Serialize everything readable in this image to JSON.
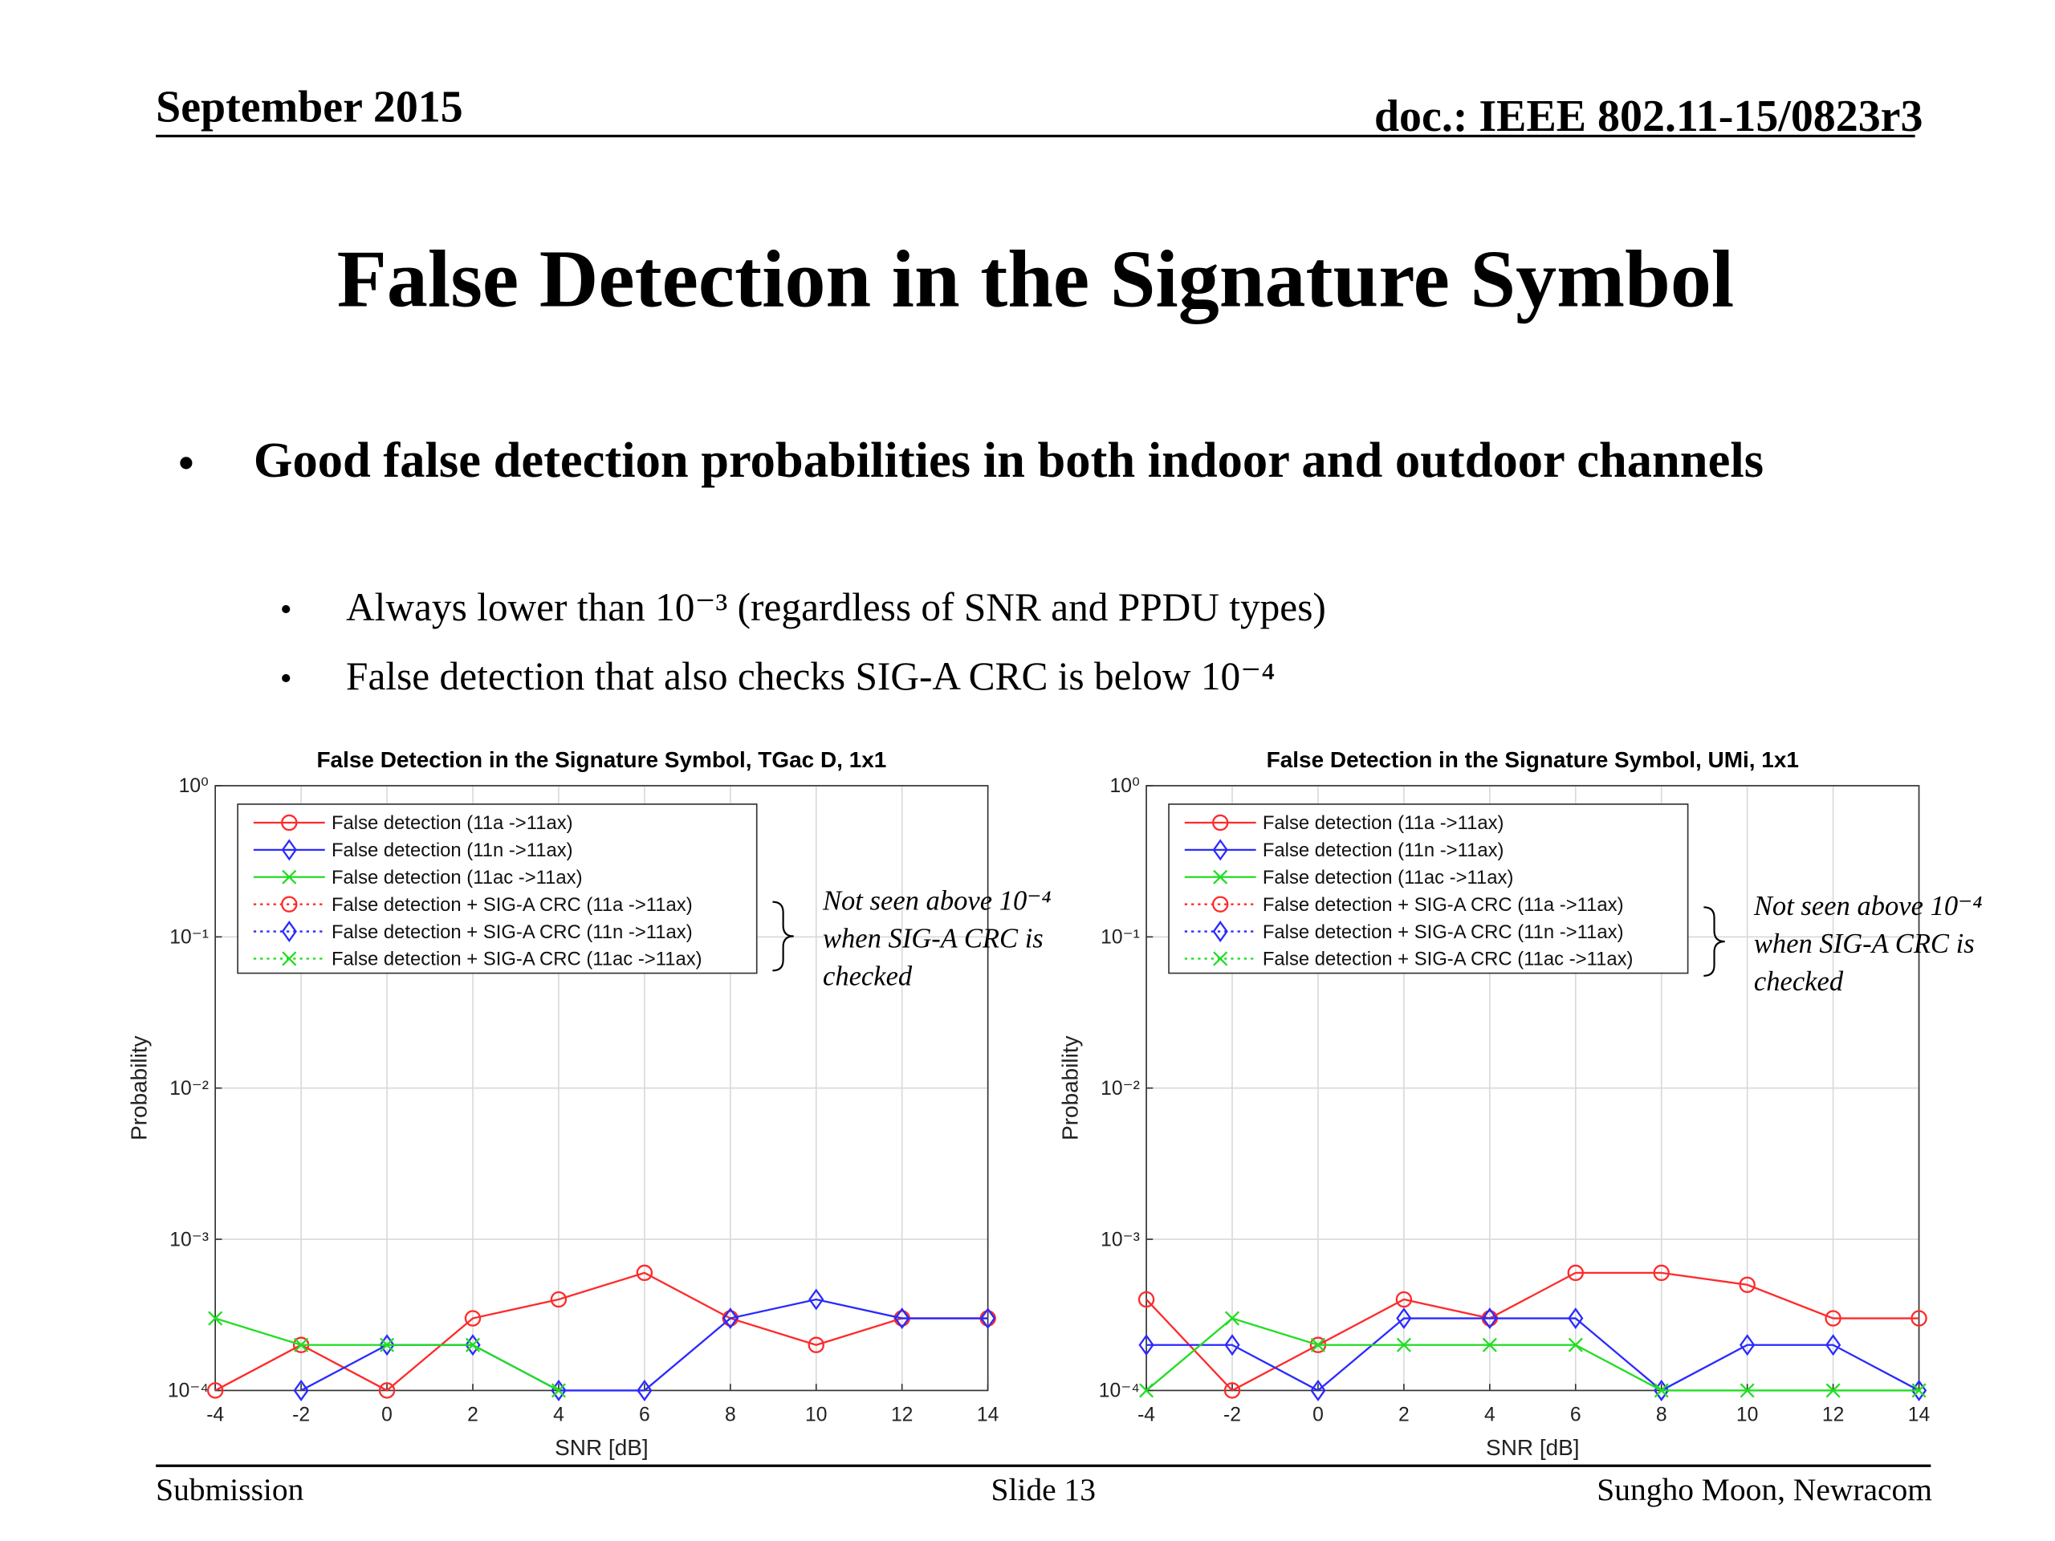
{
  "header": {
    "date": "September 2015",
    "doc": "doc.: IEEE 802.11-15/0823r3"
  },
  "title": "False Detection in the Signature Symbol",
  "bullets": [
    {
      "text": "Good false detection probabilities in both indoor and outdoor channels",
      "sub": [
        "Always lower than 10⁻³ (regardless of SNR and PPDU types)",
        "False detection that also checks SIG-A CRC is below 10⁻⁴"
      ]
    }
  ],
  "chart_data": [
    {
      "type": "line",
      "title": "False Detection in the Signature Symbol, TGac D, 1x1",
      "xlabel": "SNR [dB]",
      "ylabel": "Probability",
      "x": [
        -4,
        -2,
        0,
        2,
        4,
        6,
        8,
        10,
        12,
        14
      ],
      "xlim": [
        -4,
        14
      ],
      "xticks": [
        -4,
        -2,
        0,
        2,
        4,
        6,
        8,
        10,
        12,
        14
      ],
      "ylim": [
        0.0001,
        1
      ],
      "log_y": true,
      "grid": true,
      "legend": "upper left",
      "yticks": [
        {
          "value": 0.0001,
          "label": "10⁻⁴"
        },
        {
          "value": 0.001,
          "label": "10⁻³"
        },
        {
          "value": 0.01,
          "label": "10⁻²"
        },
        {
          "value": 0.1,
          "label": "10⁻¹"
        },
        {
          "value": 1,
          "label": "10⁰"
        }
      ],
      "series": [
        {
          "name": "False detection (11a ->11ax)",
          "color": "#ff2a2a",
          "line": "solid",
          "marker": "o",
          "values": [
            0.0001,
            0.0002,
            0.0001,
            0.0003,
            0.0004,
            0.0006,
            0.0003,
            0.0002,
            0.0003,
            0.0003
          ]
        },
        {
          "name": "False detection (11n ->11ax)",
          "color": "#2a2aff",
          "line": "solid",
          "marker": "d",
          "values": [
            null,
            0.0001,
            0.0002,
            0.0002,
            0.0001,
            0.0001,
            0.0003,
            0.0004,
            0.0003,
            0.0003
          ]
        },
        {
          "name": "False detection (11ac ->11ax)",
          "color": "#22dd22",
          "line": "solid",
          "marker": "x",
          "values": [
            0.0003,
            0.0002,
            0.0002,
            0.0002,
            0.0001,
            null,
            null,
            null,
            null,
            null
          ]
        },
        {
          "name": "False detection + SIG-A CRC (11a ->11ax)",
          "color": "#ff2a2a",
          "line": "dotted",
          "marker": "o",
          "values": [
            null,
            null,
            null,
            null,
            null,
            null,
            null,
            null,
            null,
            null
          ]
        },
        {
          "name": "False detection + SIG-A CRC (11n ->11ax)",
          "color": "#2a2aff",
          "line": "dotted",
          "marker": "d",
          "values": [
            null,
            null,
            null,
            null,
            null,
            null,
            null,
            null,
            null,
            null
          ]
        },
        {
          "name": "False detection + SIG-A CRC (11ac ->11ax)",
          "color": "#22dd22",
          "line": "dotted",
          "marker": "x",
          "values": [
            null,
            null,
            null,
            null,
            null,
            null,
            null,
            null,
            null,
            null
          ]
        }
      ],
      "annotation": [
        "Not seen above 10⁻⁴",
        "when SIG-A CRC is",
        "checked"
      ]
    },
    {
      "type": "line",
      "title": "False Detection in the Signature Symbol, UMi, 1x1",
      "xlabel": "SNR [dB]",
      "ylabel": "Probability",
      "x": [
        -4,
        -2,
        0,
        2,
        4,
        6,
        8,
        10,
        12,
        14
      ],
      "xlim": [
        -4,
        14
      ],
      "xticks": [
        -4,
        -2,
        0,
        2,
        4,
        6,
        8,
        10,
        12,
        14
      ],
      "ylim": [
        0.0001,
        1
      ],
      "log_y": true,
      "grid": true,
      "legend": "upper left",
      "yticks": [
        {
          "value": 0.0001,
          "label": "10⁻⁴"
        },
        {
          "value": 0.001,
          "label": "10⁻³"
        },
        {
          "value": 0.01,
          "label": "10⁻²"
        },
        {
          "value": 0.1,
          "label": "10⁻¹"
        },
        {
          "value": 1,
          "label": "10⁰"
        }
      ],
      "series": [
        {
          "name": "False detection (11a ->11ax)",
          "color": "#ff2a2a",
          "line": "solid",
          "marker": "o",
          "values": [
            0.0004,
            0.0001,
            0.0002,
            0.0004,
            0.0003,
            0.0006,
            0.0006,
            0.0005,
            0.0003,
            0.0003
          ]
        },
        {
          "name": "False detection (11n ->11ax)",
          "color": "#2a2aff",
          "line": "solid",
          "marker": "d",
          "values": [
            0.0002,
            0.0002,
            0.0001,
            0.0003,
            0.0003,
            0.0003,
            0.0001,
            0.0002,
            0.0002,
            0.0001
          ]
        },
        {
          "name": "False detection (11ac ->11ax)",
          "color": "#22dd22",
          "line": "solid",
          "marker": "x",
          "values": [
            0.0001,
            0.0003,
            0.0002,
            0.0002,
            0.0002,
            0.0002,
            0.0001,
            0.0001,
            0.0001,
            0.0001
          ]
        },
        {
          "name": "False detection + SIG-A CRC (11a ->11ax)",
          "color": "#ff2a2a",
          "line": "dotted",
          "marker": "o",
          "values": [
            null,
            null,
            null,
            null,
            null,
            null,
            null,
            null,
            null,
            null
          ]
        },
        {
          "name": "False detection + SIG-A CRC (11n ->11ax)",
          "color": "#2a2aff",
          "line": "dotted",
          "marker": "d",
          "values": [
            null,
            null,
            null,
            null,
            null,
            null,
            null,
            null,
            null,
            null
          ]
        },
        {
          "name": "False detection + SIG-A CRC (11ac ->11ax)",
          "color": "#22dd22",
          "line": "dotted",
          "marker": "x",
          "values": [
            null,
            null,
            null,
            null,
            null,
            null,
            null,
            null,
            null,
            null
          ]
        }
      ],
      "annotation": [
        "Not seen above 10⁻⁴",
        "when SIG-A CRC is",
        "checked"
      ]
    }
  ],
  "footer": {
    "left": "Submission",
    "center": "Slide 13",
    "right": "Sungho Moon, Newracom"
  }
}
